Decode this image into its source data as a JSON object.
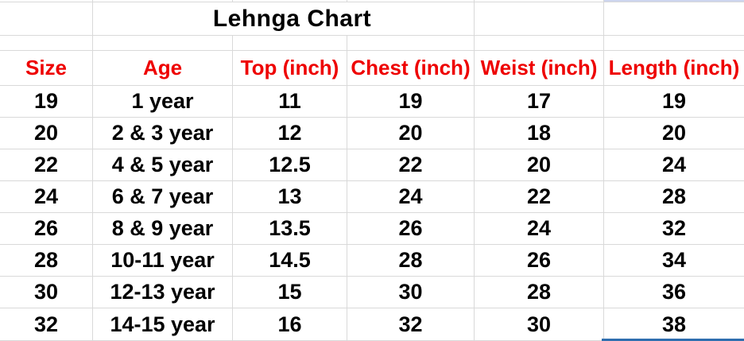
{
  "sheet": {
    "title": "Lehnga Chart",
    "columns": [
      "Size",
      "Age",
      "Top (inch)",
      "Chest (inch)",
      "Weist (inch)",
      "Length (inch)"
    ],
    "rows": [
      [
        "19",
        "1 year",
        "11",
        "19",
        "17",
        "19"
      ],
      [
        "20",
        "2 & 3 year",
        "12",
        "20",
        "18",
        "20"
      ],
      [
        "22",
        "4 & 5 year",
        "12.5",
        "22",
        "20",
        "24"
      ],
      [
        "24",
        "6 & 7 year",
        "13",
        "24",
        "22",
        "28"
      ],
      [
        "26",
        "8 & 9 year",
        "13.5",
        "26",
        "24",
        "32"
      ],
      [
        "28",
        "10-11 year",
        "14.5",
        "28",
        "26",
        "34"
      ],
      [
        "30",
        "12-13 year",
        "15",
        "30",
        "28",
        "36"
      ],
      [
        "32",
        "14-15 year",
        "16",
        "32",
        "30",
        "38"
      ]
    ],
    "colors": {
      "header_text": "#ee0000",
      "body_text": "#000000",
      "gridline": "#d9d9d9",
      "selection_border": "#2f6eaf",
      "selection_fill": "#cdd5ee",
      "background": "#ffffff"
    }
  }
}
